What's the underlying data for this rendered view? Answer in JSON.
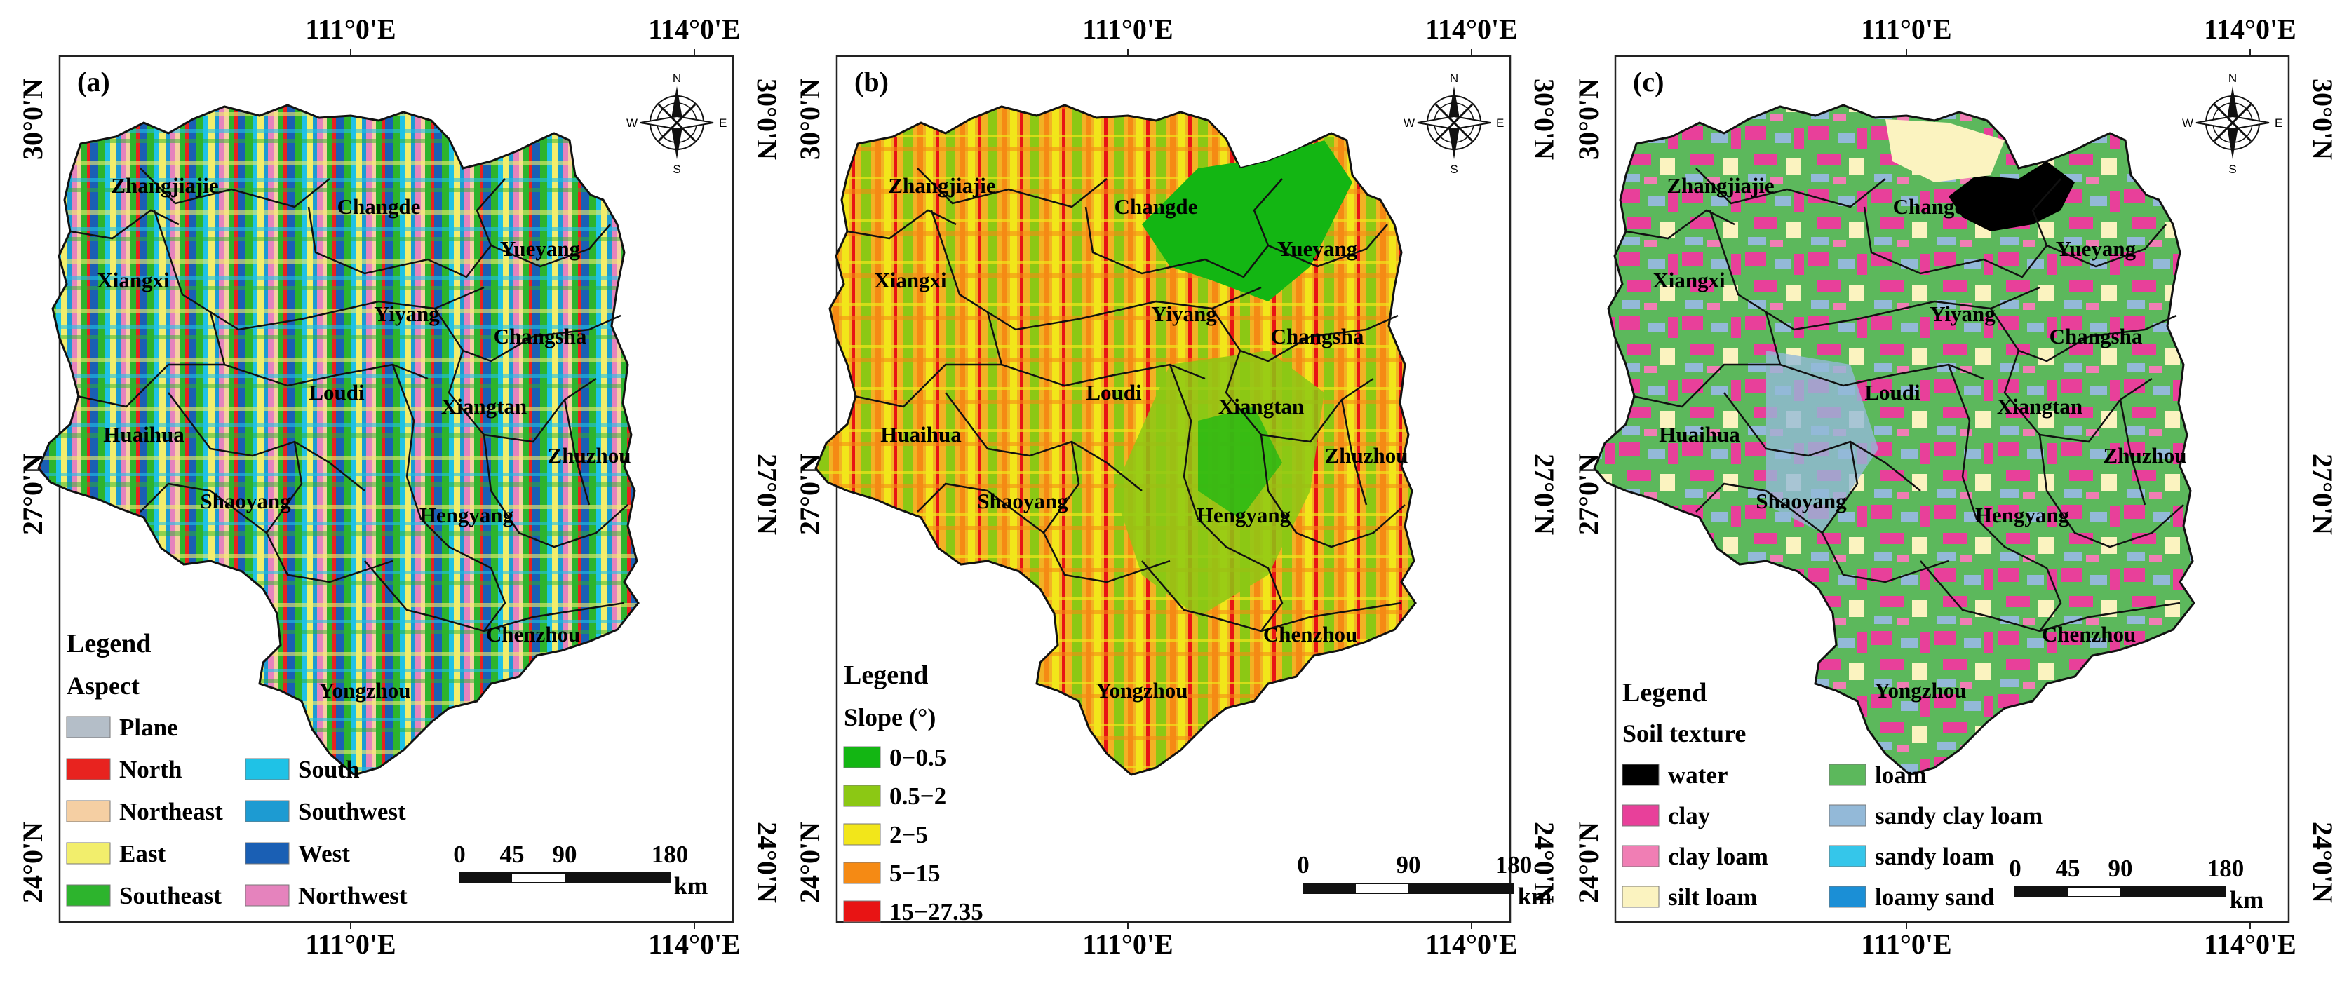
{
  "axis_labels": {
    "lon_left": "111°0'E",
    "lon_right": "114°0'E",
    "lat_top": "30°0'N",
    "lat_mid": "27°0'N",
    "lat_bottom": "24°0'N"
  },
  "compass": {
    "n": "N",
    "s": "S",
    "e": "E",
    "w": "W"
  },
  "cities": [
    "Zhangjiajie",
    "Changde",
    "Yueyang",
    "Xiangxi",
    "Yiyang",
    "Changsha",
    "Loudi",
    "Xiangtan",
    "Huaihua",
    "Zhuzhou",
    "Shaoyang",
    "Hengyang",
    "Chenzhou",
    "Yongzhou"
  ],
  "panels": [
    {
      "label": "(a)",
      "legend_title": "Legend",
      "legend_subtitle": "Aspect",
      "legend_items": [
        {
          "label": "Plane",
          "color": "#b4bec8"
        },
        {
          "label": "North",
          "color": "#e8231f"
        },
        {
          "label": "Northeast",
          "color": "#f5cfa3"
        },
        {
          "label": "East",
          "color": "#f2ee6c"
        },
        {
          "label": "Southeast",
          "color": "#2db42d"
        },
        {
          "label": "South",
          "color": "#1fc2e6"
        },
        {
          "label": "Southwest",
          "color": "#1d9bd2"
        },
        {
          "label": "West",
          "color": "#1a5fb4"
        },
        {
          "label": "Northwest",
          "color": "#e583bd"
        }
      ],
      "scale_labels": [
        "0",
        "45",
        "90",
        "180"
      ],
      "scale_unit": "km"
    },
    {
      "label": "(b)",
      "legend_title": "Legend",
      "legend_subtitle": "Slope (°)",
      "legend_items": [
        {
          "label": "0−0.5",
          "color": "#13b613"
        },
        {
          "label": "0.5−2",
          "color": "#8cc814"
        },
        {
          "label": "2−5",
          "color": "#f2e61a"
        },
        {
          "label": "5−15",
          "color": "#f58a14"
        },
        {
          "label": "15−27.35",
          "color": "#e81414"
        }
      ],
      "scale_labels": [
        "0",
        "90",
        "180"
      ],
      "scale_unit": "km"
    },
    {
      "label": "(c)",
      "legend_title": "Legend",
      "legend_subtitle": "Soil texture",
      "legend_items": [
        {
          "label": "water",
          "color": "#000000"
        },
        {
          "label": "clay",
          "color": "#e8409a"
        },
        {
          "label": "clay loam",
          "color": "#f07eb4"
        },
        {
          "label": "silt loam",
          "color": "#fbf3c0"
        },
        {
          "label": "loam",
          "color": "#5cb85c"
        },
        {
          "label": "sandy clay loam",
          "color": "#93b9d8"
        },
        {
          "label": "sandy loam",
          "color": "#35c6ea"
        },
        {
          "label": "loamy sand",
          "color": "#1b8fd6"
        }
      ],
      "scale_labels": [
        "0",
        "45",
        "90",
        "180"
      ],
      "scale_unit": "km"
    }
  ]
}
